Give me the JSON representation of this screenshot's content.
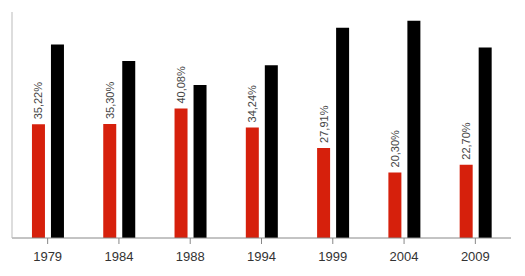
{
  "chart_data": {
    "type": "bar",
    "categories": [
      "1979",
      "1984",
      "1988",
      "1994",
      "1999",
      "2004",
      "2009"
    ],
    "series": [
      {
        "color": "#d6200c",
        "values": [
          35.22,
          35.3,
          40.08,
          34.24,
          27.91,
          20.3,
          22.7
        ],
        "value_labels": [
          "35,22%",
          "35,30%",
          "40,08%",
          "34,24%",
          "27,91%",
          "20,30%",
          "22,70%"
        ]
      },
      {
        "color": "#000000",
        "values": [
          59.9,
          54.8,
          47.4,
          53.5,
          65.1,
          67.3,
          59.0
        ]
      }
    ],
    "ylim": [
      0,
      70
    ],
    "data_labels": true,
    "tick_labels": "x"
  }
}
